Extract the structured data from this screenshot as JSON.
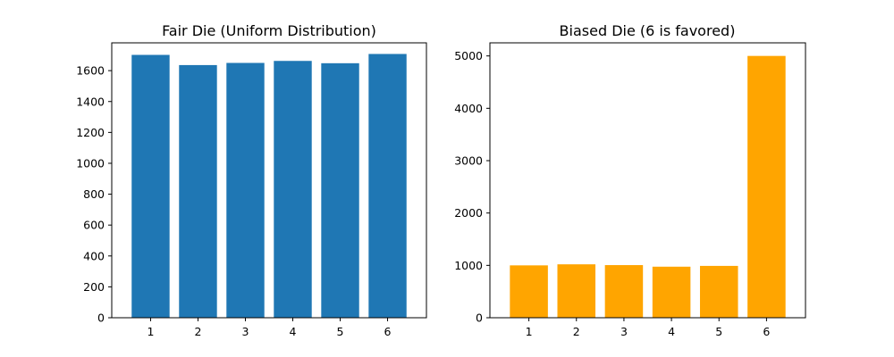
{
  "chart_data": [
    {
      "type": "bar",
      "title": "Fair Die (Uniform Distribution)",
      "xlabel": "",
      "ylabel": "",
      "categories": [
        "1",
        "2",
        "3",
        "4",
        "5",
        "6"
      ],
      "values": [
        1702,
        1636,
        1650,
        1663,
        1648,
        1708
      ],
      "ylim": [
        0,
        1780
      ],
      "yticks": [
        0,
        200,
        400,
        600,
        800,
        1000,
        1200,
        1400,
        1600
      ],
      "color": "#1f77b4",
      "grid": false
    },
    {
      "type": "bar",
      "title": "Biased Die (6 is favored)",
      "xlabel": "",
      "ylabel": "",
      "categories": [
        "1",
        "2",
        "3",
        "4",
        "5",
        "6"
      ],
      "values": [
        1000,
        1020,
        1005,
        975,
        990,
        5000
      ],
      "ylim": [
        0,
        5250
      ],
      "yticks": [
        0,
        1000,
        2000,
        3000,
        4000,
        5000
      ],
      "color": "#ffa500",
      "grid": false
    }
  ]
}
